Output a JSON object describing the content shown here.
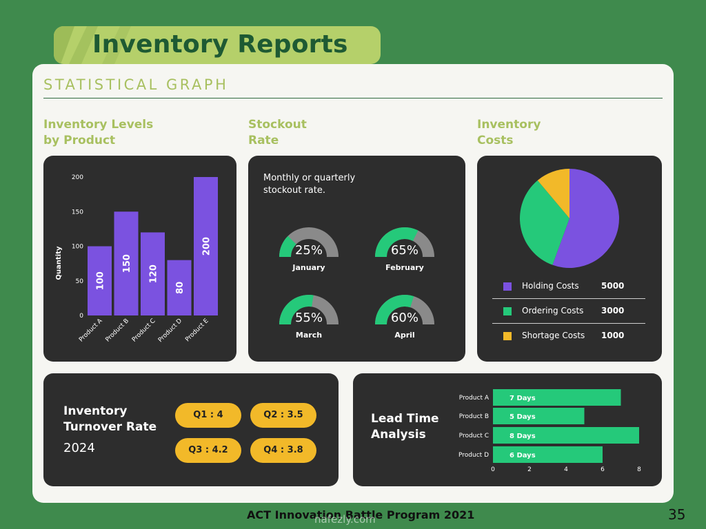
{
  "header": {
    "title": "Inventory Reports"
  },
  "section_title": "STATISTICAL GRAPH",
  "panels": {
    "levels": {
      "label_line1": "Inventory Levels",
      "label_line2": "by Product"
    },
    "stockout": {
      "label_line1": "Stockout",
      "label_line2": "Rate",
      "desc_line1": "Monthly or quarterly",
      "desc_line2": "stockout rate."
    },
    "costs": {
      "label_line1": "Inventory",
      "label_line2": "Costs"
    },
    "turnover": {
      "title_line1": "Inventory",
      "title_line2": "Turnover Rate",
      "year": "2024",
      "quarters": [
        "Q1 : 4",
        "Q2 : 3.5",
        "Q3 : 4.2",
        "Q4 : 3.8"
      ]
    },
    "lead": {
      "title_line1": "Lead Time",
      "title_line2": "Analysis"
    }
  },
  "colors": {
    "purple": "#7b52e0",
    "green": "#25c97a",
    "gray": "#8a8a8a",
    "yellow": "#f2b929"
  },
  "chart_data": [
    {
      "type": "bar",
      "title": "Inventory Levels by Product",
      "categories": [
        "Product A",
        "Product B",
        "Product C",
        "Product D",
        "Product E"
      ],
      "values": [
        100,
        150,
        120,
        80,
        200
      ],
      "ylabel": "Quantity",
      "yticks": [
        0,
        50,
        100,
        150,
        200
      ],
      "ylim": [
        0,
        200
      ],
      "grid": false
    },
    {
      "type": "gauge",
      "title": "Stockout Rate",
      "items": [
        {
          "label": "January",
          "value": 25,
          "display": "25%"
        },
        {
          "label": "February",
          "value": 65,
          "display": "65%"
        },
        {
          "label": "March",
          "value": 55,
          "display": "55%"
        },
        {
          "label": "April",
          "value": 60,
          "display": "60%"
        }
      ]
    },
    {
      "type": "pie",
      "title": "Inventory Costs",
      "slices": [
        {
          "label": "Holding Costs",
          "value": 5000,
          "display": "5000",
          "color": "#7b52e0"
        },
        {
          "label": "Ordering Costs",
          "value": 3000,
          "display": "3000",
          "color": "#25c97a"
        },
        {
          "label": "Shortage Costs",
          "value": 1000,
          "display": "1000",
          "color": "#f2b929"
        }
      ]
    },
    {
      "type": "bar",
      "orientation": "horizontal",
      "title": "Lead Time Analysis",
      "categories": [
        "Product A",
        "Product B",
        "Product C",
        "Product D"
      ],
      "values": [
        7,
        5,
        8,
        6
      ],
      "value_labels": [
        "7 Days",
        "5 Days",
        "8 Days",
        "6 Days"
      ],
      "xticks": [
        0,
        2,
        4,
        6,
        8
      ],
      "xlim": [
        0,
        8
      ]
    }
  ],
  "footer": {
    "text": "ACT Innovation Battle Program 2021",
    "page_number": "35",
    "watermark": "nafezly.com"
  }
}
